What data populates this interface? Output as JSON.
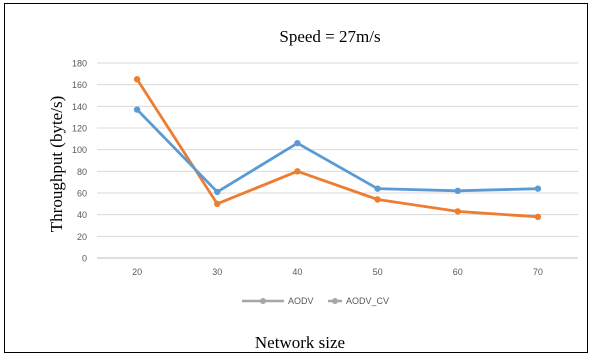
{
  "chart_data": {
    "type": "line",
    "title": "Speed = 27m/s",
    "xlabel": "Network size",
    "ylabel": "Throughput (byte/s)",
    "categories": [
      "20",
      "30",
      "40",
      "50",
      "60",
      "70"
    ],
    "yticks": [
      "0",
      "20",
      "40",
      "60",
      "80",
      "100",
      "120",
      "140",
      "160",
      "180"
    ],
    "ylim": [
      0,
      180
    ],
    "grid": true,
    "legend_position": "bottom",
    "series": [
      {
        "name": "AODV",
        "color": "#5b9bd5",
        "values": [
          137,
          61,
          106,
          64,
          62,
          64
        ]
      },
      {
        "name": "AODV_CV",
        "color": "#ed7d31",
        "values": [
          165,
          50,
          80,
          54,
          43,
          38
        ]
      }
    ]
  }
}
